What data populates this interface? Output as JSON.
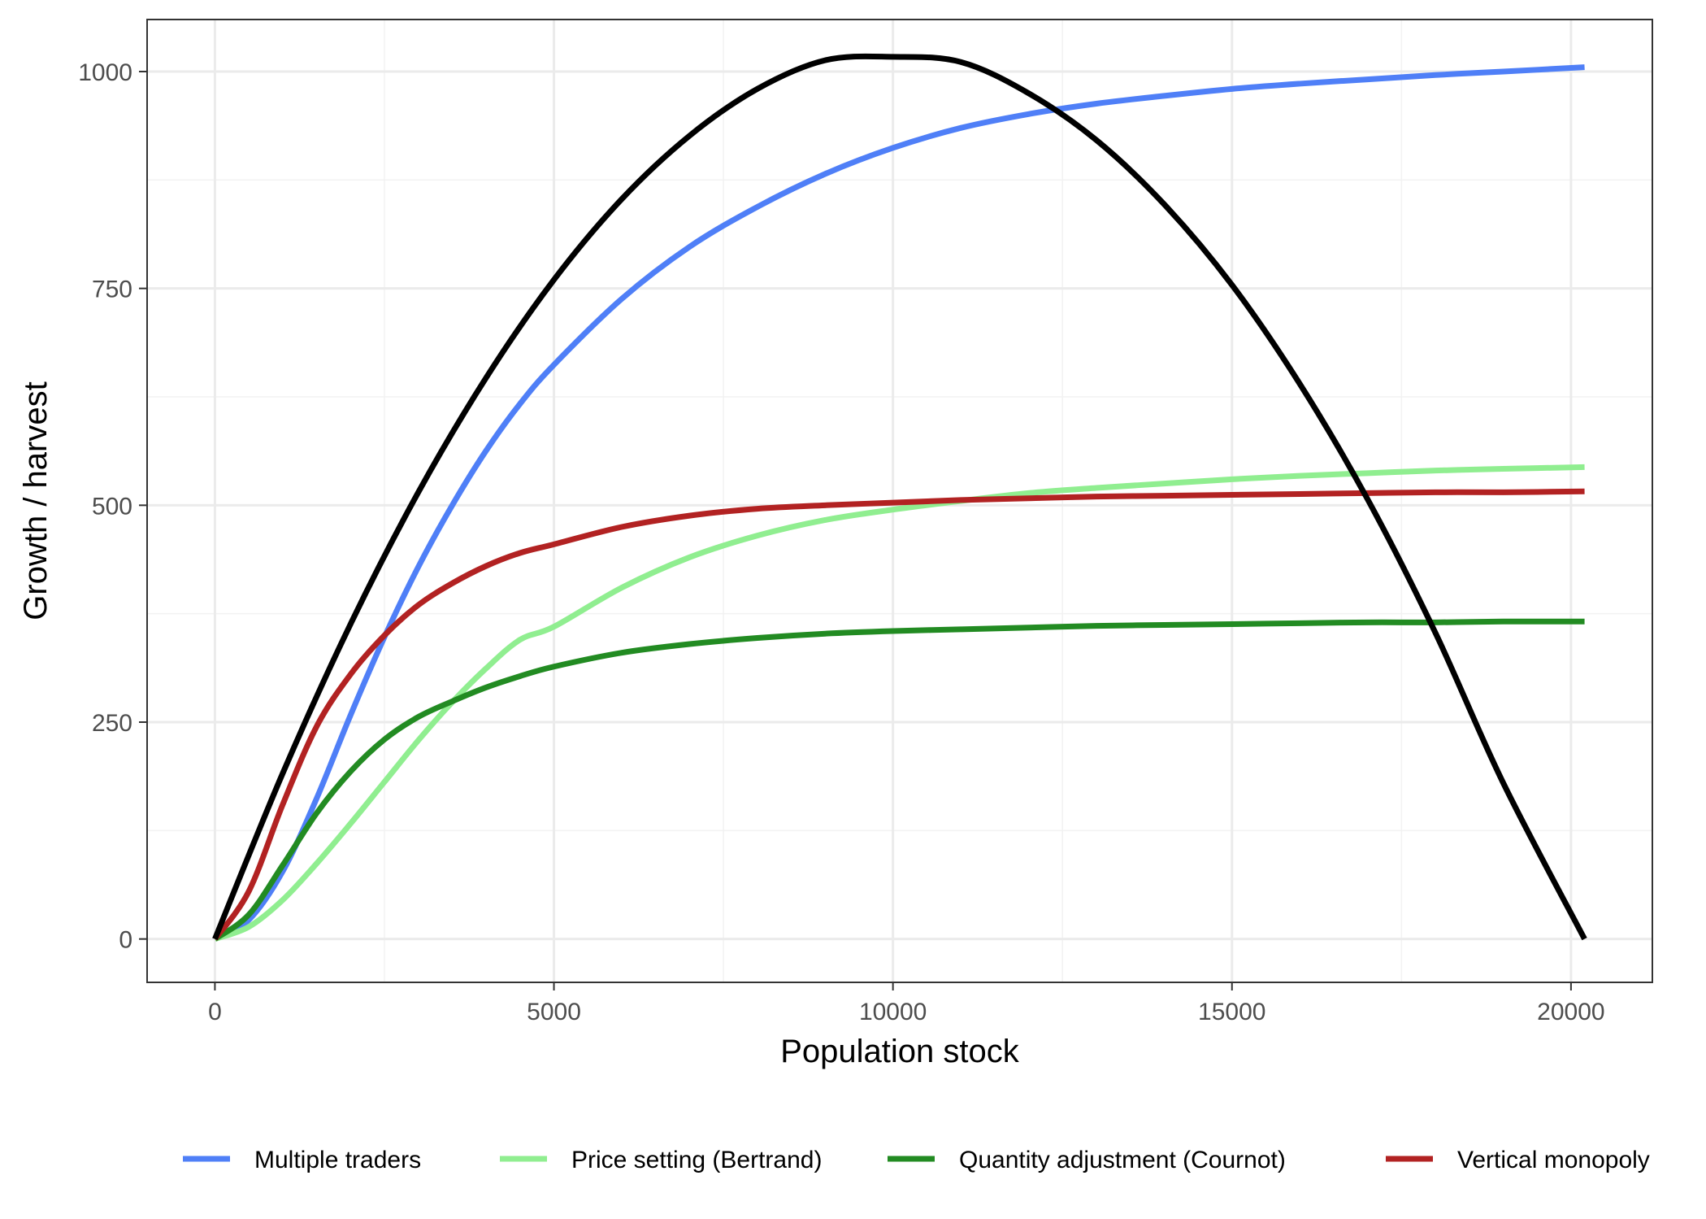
{
  "chart_data": {
    "type": "line",
    "title": "",
    "xlabel": "Population stock",
    "ylabel": "Growth / harvest",
    "xlim": [
      -1000,
      21200
    ],
    "ylim": [
      -50,
      1060
    ],
    "x_ticks": [
      0,
      5000,
      10000,
      15000,
      20000
    ],
    "x_tick_labels": [
      "0",
      "5000",
      "10000",
      "15000",
      "20000"
    ],
    "y_ticks": [
      0,
      250,
      500,
      750,
      1000
    ],
    "y_tick_labels": [
      "0",
      "250",
      "500",
      "750",
      "1000"
    ],
    "grid": true,
    "legend_position": "bottom",
    "growth_curve": {
      "color": "#000000",
      "x": [
        0,
        1000,
        2000,
        3000,
        4000,
        5000,
        6000,
        7000,
        8000,
        9000,
        10000,
        11000,
        12000,
        13000,
        14000,
        15000,
        16000,
        17000,
        18000,
        19000,
        20200
      ],
      "values": [
        0,
        191,
        363,
        515,
        647,
        760,
        853,
        926,
        980,
        1013,
        1017,
        1011,
        975,
        921,
        847,
        754,
        640,
        507,
        353,
        180,
        0
      ]
    },
    "series": [
      {
        "name": "Multiple traders",
        "color": "#4f7ff7",
        "x": [
          0,
          500,
          1000,
          1500,
          2000,
          2500,
          3000,
          3500,
          4000,
          4500,
          5000,
          6000,
          7000,
          8000,
          9000,
          10000,
          11000,
          12000,
          13000,
          14000,
          15000,
          16000,
          17000,
          18000,
          19000,
          20200
        ],
        "values": [
          0,
          22,
          78,
          162,
          258,
          348,
          429,
          500,
          563,
          617,
          662,
          738,
          798,
          844,
          882,
          912,
          935,
          951,
          963,
          972,
          980,
          986,
          991,
          996,
          1000,
          1005
        ]
      },
      {
        "name": "Price setting (Bertrand)",
        "color": "#90ee90",
        "x": [
          0,
          500,
          1000,
          1500,
          2000,
          2500,
          3000,
          3500,
          4000,
          4500,
          5000,
          6000,
          7000,
          8000,
          9000,
          10000,
          11000,
          12000,
          13000,
          14000,
          15000,
          16000,
          17000,
          18000,
          19000,
          20200
        ],
        "values": [
          0,
          14,
          45,
          87,
          133,
          181,
          229,
          273,
          312,
          345,
          360,
          405,
          440,
          465,
          483,
          495,
          505,
          514,
          520,
          525,
          530,
          534,
          537,
          540,
          542,
          544
        ]
      },
      {
        "name": "Quantity adjustment (Cournot)",
        "color": "#228b22",
        "x": [
          0,
          500,
          1000,
          1500,
          2000,
          2500,
          3000,
          3500,
          4000,
          4500,
          5000,
          6000,
          7000,
          8000,
          9000,
          10000,
          11000,
          12000,
          13000,
          14000,
          15000,
          16000,
          17000,
          18000,
          19000,
          20200
        ],
        "values": [
          0,
          28,
          85,
          145,
          193,
          230,
          256,
          274,
          290,
          303,
          314,
          330,
          340,
          347,
          352,
          355,
          357,
          359,
          361,
          362,
          363,
          364,
          365,
          365,
          366,
          366
        ]
      },
      {
        "name": "Vertical monopoly",
        "color": "#b22222",
        "x": [
          0,
          500,
          1000,
          1500,
          2000,
          2500,
          3000,
          3500,
          4000,
          4500,
          5000,
          6000,
          7000,
          8000,
          9000,
          10000,
          11000,
          12000,
          13000,
          14000,
          15000,
          16000,
          17000,
          18000,
          19000,
          20200
        ],
        "values": [
          0,
          55,
          155,
          245,
          305,
          350,
          385,
          410,
          430,
          445,
          455,
          475,
          488,
          496,
          500,
          503,
          506,
          508,
          510,
          511,
          512,
          513,
          514,
          515,
          515,
          516
        ]
      }
    ]
  }
}
